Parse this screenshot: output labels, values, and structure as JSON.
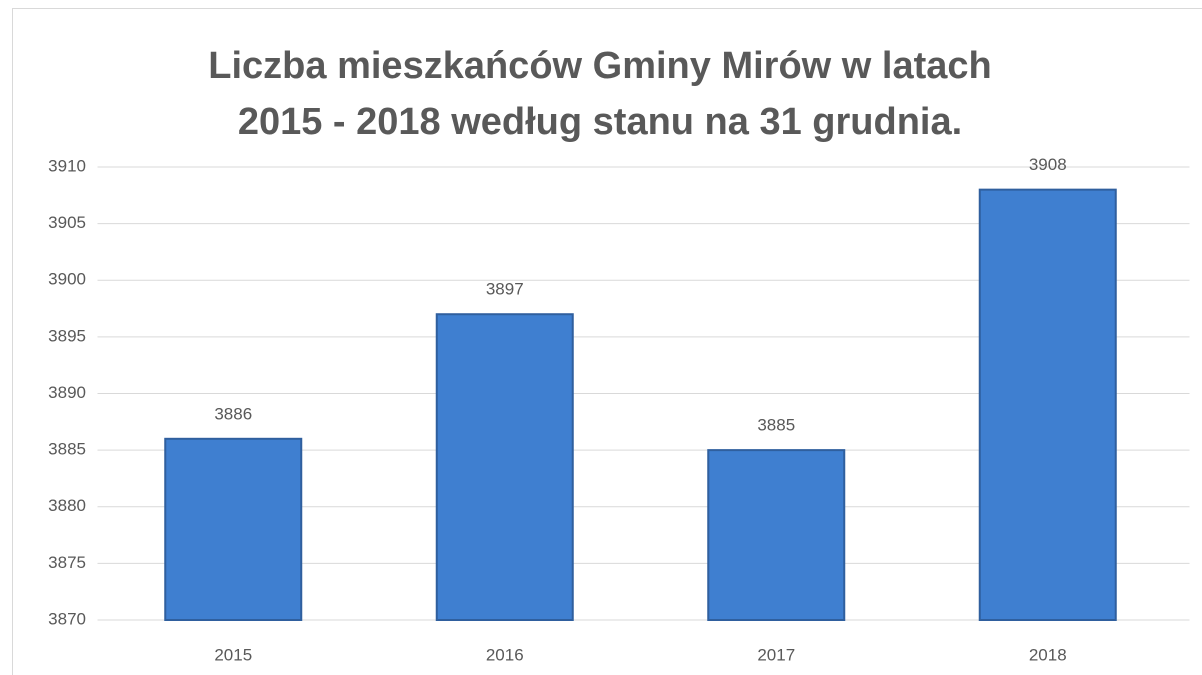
{
  "chart_data": {
    "type": "bar",
    "title": "Liczba mieszkańców Gminy Mirów w latach 2015 - 2018 według stanu na 31 grudnia.",
    "categories": [
      "2015",
      "2016",
      "2017",
      "2018"
    ],
    "values": [
      3886,
      3897,
      3885,
      3908
    ],
    "color": "#3f7fd0",
    "ylim": [
      3870,
      3910
    ],
    "yticks": [
      3870,
      3875,
      3880,
      3885,
      3890,
      3895,
      3900,
      3905,
      3910
    ],
    "grid": true
  }
}
